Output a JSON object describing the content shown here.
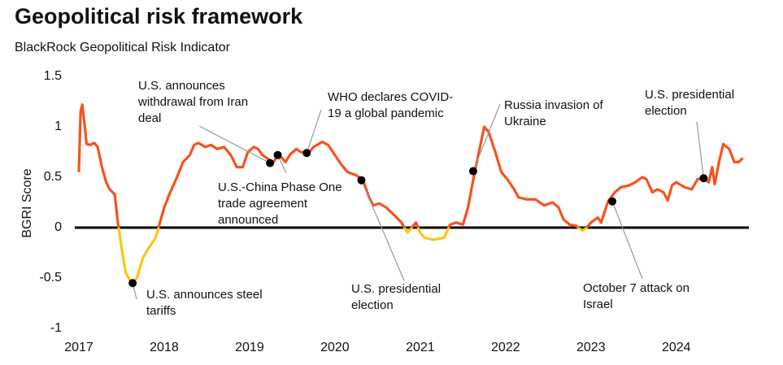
{
  "chart_data": {
    "type": "line",
    "title": "Geopolitical risk framework",
    "subtitle": "BlackRock Geopolitical Risk Indicator",
    "y_label": "BGRI Score",
    "xlim": [
      2017,
      2024.85
    ],
    "xticks": [
      2017,
      2018,
      2019,
      2020,
      2021,
      2022,
      2023,
      2024
    ],
    "ylim": [
      -1,
      1.5
    ],
    "yticks": [
      1.5,
      1,
      0.5,
      0,
      -0.5,
      -1
    ],
    "grid": false,
    "reference_line": 0,
    "series": [
      {
        "name": "BGRI",
        "color": "#f7521e",
        "negative_color": "#ffc512",
        "x": [
          2017.0,
          2017.02,
          2017.04,
          2017.07,
          2017.09,
          2017.13,
          2017.18,
          2017.22,
          2017.27,
          2017.32,
          2017.36,
          2017.42,
          2017.45,
          2017.5,
          2017.55,
          2017.62,
          2017.68,
          2017.75,
          2017.82,
          2017.9,
          2017.95,
          2018.0,
          2018.07,
          2018.15,
          2018.22,
          2018.3,
          2018.35,
          2018.4,
          2018.48,
          2018.55,
          2018.62,
          2018.7,
          2018.78,
          2018.85,
          2018.92,
          2018.98,
          2019.05,
          2019.1,
          2019.15,
          2019.22,
          2019.27,
          2019.32,
          2019.35,
          2019.42,
          2019.48,
          2019.55,
          2019.6,
          2019.69,
          2019.75,
          2019.85,
          2019.92,
          2020.0,
          2020.08,
          2020.15,
          2020.25,
          2020.33,
          2020.4,
          2020.45,
          2020.52,
          2020.6,
          2020.7,
          2020.78,
          2020.85,
          2020.9,
          2020.95,
          2021.0,
          2021.05,
          2021.15,
          2021.28,
          2021.35,
          2021.42,
          2021.5,
          2021.56,
          2021.64,
          2021.7,
          2021.75,
          2021.8,
          2021.88,
          2021.95,
          2022.02,
          2022.1,
          2022.15,
          2022.25,
          2022.35,
          2022.45,
          2022.55,
          2022.62,
          2022.68,
          2022.75,
          2022.82,
          2022.9,
          2022.95,
          2023.0,
          2023.08,
          2023.12,
          2023.2,
          2023.28,
          2023.35,
          2023.45,
          2023.52,
          2023.6,
          2023.65,
          2023.72,
          2023.78,
          2023.85,
          2023.9,
          2023.95,
          2024.0,
          2024.1,
          2024.18,
          2024.25,
          2024.32,
          2024.38,
          2024.42,
          2024.45,
          2024.5,
          2024.55,
          2024.62,
          2024.68,
          2024.73,
          2024.78
        ],
        "values": [
          0.55,
          1.15,
          1.22,
          1.0,
          0.83,
          0.82,
          0.84,
          0.8,
          0.6,
          0.45,
          0.38,
          0.33,
          0.1,
          -0.2,
          -0.45,
          -0.55,
          -0.5,
          -0.3,
          -0.2,
          -0.1,
          0.05,
          0.2,
          0.35,
          0.5,
          0.65,
          0.72,
          0.82,
          0.84,
          0.8,
          0.82,
          0.78,
          0.8,
          0.72,
          0.6,
          0.6,
          0.75,
          0.8,
          0.78,
          0.72,
          0.68,
          0.64,
          0.7,
          0.72,
          0.65,
          0.73,
          0.78,
          0.75,
          0.74,
          0.8,
          0.85,
          0.82,
          0.72,
          0.62,
          0.55,
          0.52,
          0.47,
          0.3,
          0.22,
          0.24,
          0.2,
          0.12,
          0.05,
          -0.05,
          0.0,
          0.05,
          -0.05,
          -0.1,
          -0.12,
          -0.1,
          0.03,
          0.05,
          0.03,
          0.2,
          0.56,
          0.8,
          1.0,
          0.95,
          0.75,
          0.55,
          0.48,
          0.38,
          0.3,
          0.28,
          0.28,
          0.22,
          0.25,
          0.2,
          0.08,
          0.03,
          0.02,
          -0.03,
          0.0,
          0.05,
          0.1,
          0.05,
          0.26,
          0.35,
          0.4,
          0.42,
          0.45,
          0.5,
          0.48,
          0.35,
          0.38,
          0.35,
          0.27,
          0.42,
          0.45,
          0.4,
          0.38,
          0.48,
          0.49,
          0.45,
          0.6,
          0.43,
          0.65,
          0.83,
          0.78,
          0.65,
          0.65,
          0.69
        ]
      }
    ],
    "annotations": [
      {
        "text": [
          "U.S. announces steel",
          "tariffs"
        ],
        "x": 2017.63,
        "y": -0.55
      },
      {
        "text": [
          "U.S. announces",
          "withdrawal from Iran",
          "deal"
        ],
        "x": 2019.24,
        "y": 0.64
      },
      {
        "text": [
          "U.S.-China Phase One",
          "trade agreement",
          "announced"
        ],
        "x": 2019.33,
        "y": 0.72
      },
      {
        "text": [
          "WHO declares COVID-",
          "19 a global pandemic"
        ],
        "x": 2019.67,
        "y": 0.74
      },
      {
        "text": [
          "U.S. presidential",
          "election"
        ],
        "x": 2020.31,
        "y": 0.47
      },
      {
        "text": [
          "Russia invasion of",
          "Ukraine"
        ],
        "x": 2021.62,
        "y": 0.56
      },
      {
        "text": [
          "October 7 attack on",
          "Israel"
        ],
        "x": 2023.25,
        "y": 0.26
      },
      {
        "text": [
          "U.S. presidential",
          "election"
        ],
        "x": 2024.32,
        "y": 0.49
      }
    ]
  }
}
